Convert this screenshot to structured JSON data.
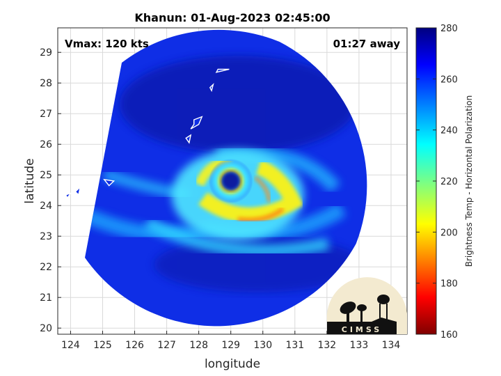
{
  "chart_data": {
    "type": "heatmap",
    "title": "Khanun: 01-Aug-2023 02:45:00",
    "xlabel": "longitude",
    "ylabel": "latitude",
    "xlim": [
      123.6,
      134.5
    ],
    "ylim": [
      19.8,
      29.8
    ],
    "xticks": [
      "124",
      "125",
      "126",
      "127",
      "128",
      "129",
      "130",
      "131",
      "132",
      "133",
      "134"
    ],
    "yticks": [
      "20",
      "21",
      "22",
      "23",
      "24",
      "25",
      "26",
      "27",
      "28",
      "29"
    ],
    "grid": true,
    "annotations": {
      "vmax": "Vmax: 120 kts",
      "away": "01:27 away"
    },
    "storm_center": {
      "lon": 129.0,
      "lat": 24.8
    },
    "colorbar": {
      "label": "Brightness Temp - Horizontal Polarization",
      "min": 160,
      "max": 280,
      "ticks": [
        "160",
        "180",
        "200",
        "220",
        "240",
        "260",
        "280"
      ],
      "colormap": "jet"
    },
    "logo_text": "CIMSS"
  }
}
